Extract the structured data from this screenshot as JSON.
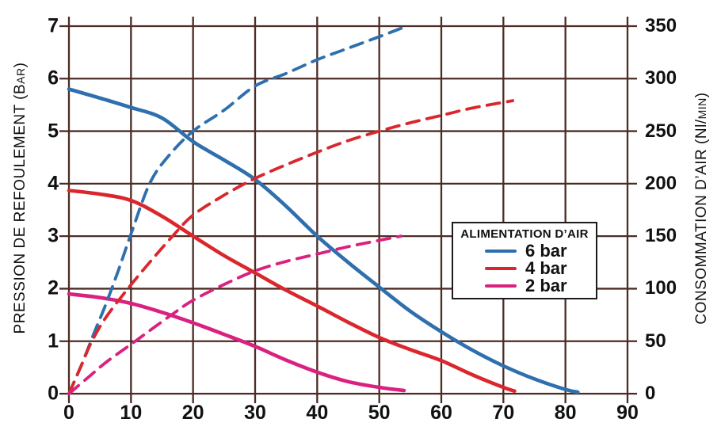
{
  "chart_data": {
    "type": "line",
    "title": "",
    "grid": true,
    "x_axis": {
      "label": "",
      "range": [
        0,
        90
      ],
      "ticks": [
        0,
        10,
        20,
        30,
        40,
        50,
        60,
        70,
        80,
        90
      ]
    },
    "y_left": {
      "label": "PRESSION DE REFOULEMENT (Bar)",
      "range": [
        0,
        7
      ],
      "ticks": [
        0,
        1,
        2,
        3,
        4,
        5,
        6,
        7
      ]
    },
    "y_right": {
      "label": "CONSOMMATION D'AIR (Nl/min)",
      "range": [
        0,
        350
      ],
      "ticks": [
        0,
        50,
        100,
        150,
        200,
        250,
        300,
        350
      ]
    },
    "legend": {
      "title": "ALIMENTATION D’AIR",
      "position": "middle-right",
      "entries": [
        {
          "label": "6 bar",
          "color": "#2e6fae"
        },
        {
          "label": "4 bar",
          "color": "#da272e"
        },
        {
          "label": "2 bar",
          "color": "#da2180"
        }
      ]
    },
    "series": [
      {
        "name": "Pression de refoulement - 6 bar",
        "axis": "left",
        "style": "solid",
        "color": "#2e6fae",
        "points": [
          [
            0,
            5.8
          ],
          [
            5,
            5.63
          ],
          [
            10,
            5.45
          ],
          [
            15,
            5.25
          ],
          [
            20,
            4.8
          ],
          [
            25,
            4.45
          ],
          [
            30,
            4.08
          ],
          [
            35,
            3.57
          ],
          [
            40,
            3.0
          ],
          [
            45,
            2.5
          ],
          [
            50,
            2.03
          ],
          [
            55,
            1.57
          ],
          [
            60,
            1.18
          ],
          [
            65,
            0.83
          ],
          [
            70,
            0.53
          ],
          [
            75,
            0.28
          ],
          [
            80,
            0.08
          ],
          [
            82,
            0.03
          ]
        ]
      },
      {
        "name": "Pression de refoulement - 4 bar",
        "axis": "left",
        "style": "solid",
        "color": "#da272e",
        "points": [
          [
            0,
            3.87
          ],
          [
            5,
            3.8
          ],
          [
            10,
            3.68
          ],
          [
            15,
            3.38
          ],
          [
            20,
            3.0
          ],
          [
            25,
            2.63
          ],
          [
            30,
            2.3
          ],
          [
            35,
            1.97
          ],
          [
            40,
            1.67
          ],
          [
            45,
            1.36
          ],
          [
            50,
            1.07
          ],
          [
            55,
            0.84
          ],
          [
            60,
            0.63
          ],
          [
            65,
            0.36
          ],
          [
            70,
            0.12
          ],
          [
            71.8,
            0.05
          ]
        ]
      },
      {
        "name": "Pression de refoulement - 2 bar",
        "axis": "left",
        "style": "solid",
        "color": "#da2180",
        "points": [
          [
            0,
            1.9
          ],
          [
            5,
            1.83
          ],
          [
            10,
            1.72
          ],
          [
            15,
            1.55
          ],
          [
            20,
            1.35
          ],
          [
            25,
            1.13
          ],
          [
            30,
            0.9
          ],
          [
            35,
            0.64
          ],
          [
            40,
            0.41
          ],
          [
            45,
            0.23
          ],
          [
            50,
            0.12
          ],
          [
            54,
            0.06
          ]
        ]
      },
      {
        "name": "Consommation d'air - 6 bar",
        "axis": "right",
        "style": "dashed",
        "color": "#2e6fae",
        "points": [
          [
            0,
            0
          ],
          [
            2,
            27
          ],
          [
            4,
            57
          ],
          [
            6,
            86
          ],
          [
            8,
            118
          ],
          [
            10,
            152
          ],
          [
            13,
            200
          ],
          [
            16,
            226
          ],
          [
            20,
            250
          ],
          [
            25,
            270
          ],
          [
            30,
            293
          ],
          [
            35,
            305
          ],
          [
            40,
            318
          ],
          [
            45,
            329
          ],
          [
            50,
            340
          ],
          [
            54,
            349
          ]
        ]
      },
      {
        "name": "Consommation d'air - 4 bar",
        "axis": "right",
        "style": "dashed",
        "color": "#da272e",
        "points": [
          [
            0,
            0
          ],
          [
            2,
            27
          ],
          [
            3.7,
            50
          ],
          [
            6,
            73
          ],
          [
            9.5,
            100
          ],
          [
            13,
            125
          ],
          [
            16.7,
            150
          ],
          [
            20,
            170
          ],
          [
            25,
            189
          ],
          [
            30,
            205
          ],
          [
            35,
            218
          ],
          [
            40,
            230
          ],
          [
            45,
            241
          ],
          [
            50,
            250
          ],
          [
            55,
            258
          ],
          [
            60,
            265
          ],
          [
            65,
            272
          ],
          [
            71.5,
            279
          ]
        ]
      },
      {
        "name": "Consommation d'air - 2 bar",
        "axis": "right",
        "style": "dashed",
        "color": "#da2180",
        "points": [
          [
            0,
            0
          ],
          [
            3,
            15
          ],
          [
            6,
            30
          ],
          [
            10,
            47
          ],
          [
            13,
            60
          ],
          [
            16.5,
            75
          ],
          [
            20,
            89
          ],
          [
            25,
            104
          ],
          [
            30,
            117
          ],
          [
            35,
            126
          ],
          [
            40,
            133
          ],
          [
            45,
            140
          ],
          [
            50,
            146
          ],
          [
            53.5,
            150
          ]
        ]
      }
    ]
  },
  "axes_display": {
    "left": {
      "main": "PRESSION DE REFOULEMENT (B",
      "small": "AR",
      "end": ")"
    },
    "right": {
      "main": "CONSOMMATION D’AIR (Nl/",
      "small": "MIN",
      "end": ")"
    }
  },
  "colors": {
    "grid": "#4c2c24",
    "text": "#111111",
    "background": "#ffffff"
  }
}
